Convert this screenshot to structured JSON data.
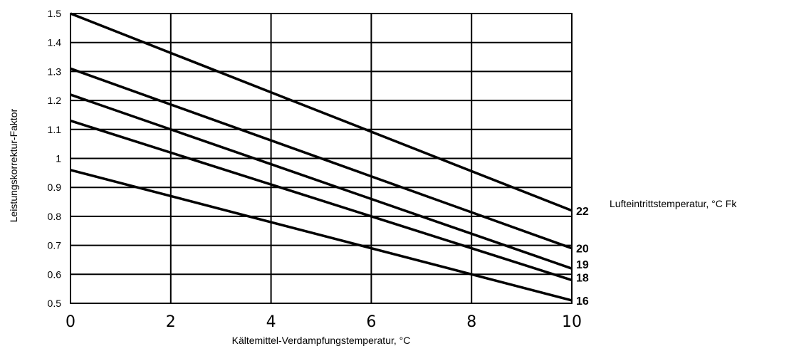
{
  "chart_data": {
    "type": "line",
    "xlabel": "Kältemittel-Verdampfungstemperatur, °C",
    "ylabel": "Leistungskorrektur-Faktor",
    "legend_title": "Lufteintrittstemperatur, °C Fk",
    "xlim": [
      0,
      10
    ],
    "ylim": [
      0.5,
      1.5
    ],
    "x_ticks": [
      "0",
      "2",
      "4",
      "6",
      "8",
      "10"
    ],
    "y_ticks": [
      "0.5",
      "0.6",
      "0.7",
      "0.8",
      "0.9",
      "1",
      "1.1",
      "1.2",
      "1.3",
      "1.4",
      "1.5"
    ],
    "grid": true,
    "series": [
      {
        "name": "22",
        "x": [
          0,
          10
        ],
        "y": [
          1.5,
          0.82
        ]
      },
      {
        "name": "20",
        "x": [
          0,
          10
        ],
        "y": [
          1.31,
          0.69
        ]
      },
      {
        "name": "19",
        "x": [
          0,
          10
        ],
        "y": [
          1.22,
          0.62
        ]
      },
      {
        "name": "18",
        "x": [
          0,
          10
        ],
        "y": [
          1.13,
          0.58
        ]
      },
      {
        "name": "16",
        "x": [
          0,
          10
        ],
        "y": [
          0.96,
          0.51
        ]
      }
    ],
    "series_label_y": {
      "22": 0.82,
      "20": 0.69,
      "19": 0.635,
      "18": 0.59,
      "16": 0.51
    }
  }
}
